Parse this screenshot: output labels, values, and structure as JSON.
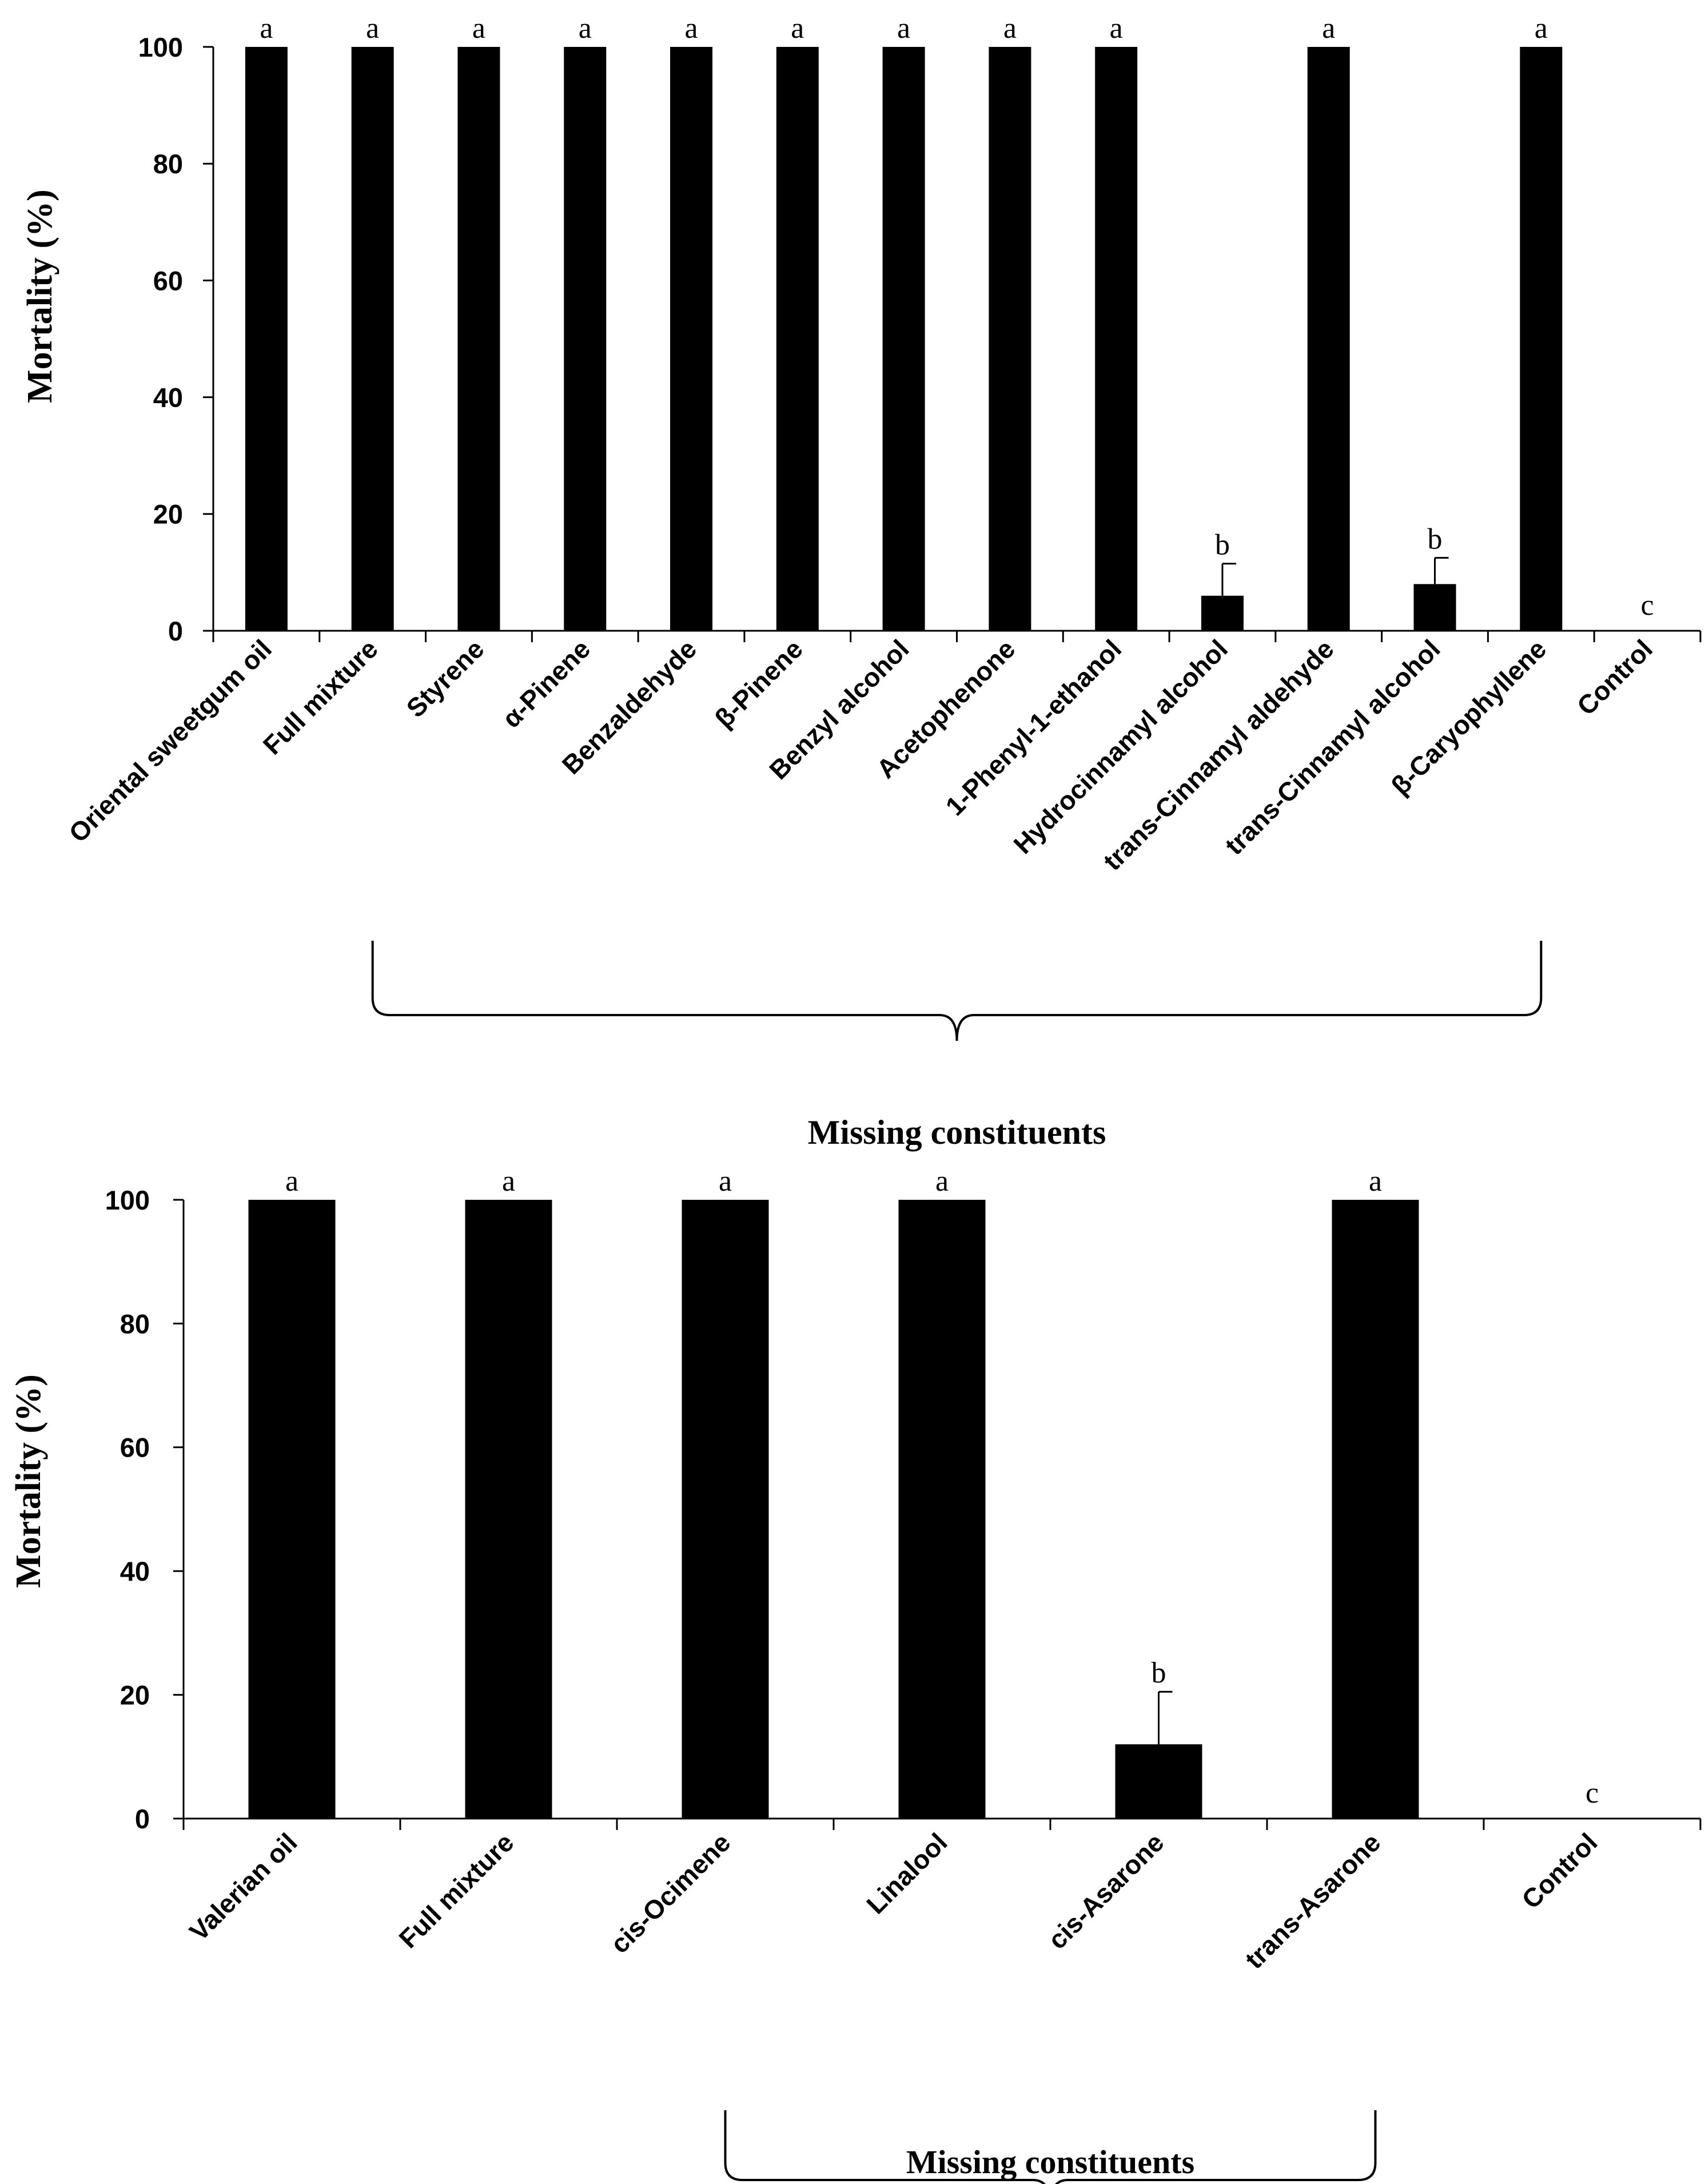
{
  "chart_data": [
    {
      "type": "bar",
      "title": "",
      "xlabel": "Missing constituents",
      "ylabel": "Mortality (%)",
      "ylim": [
        0,
        100
      ],
      "yticks": [
        0,
        20,
        40,
        60,
        80,
        100
      ],
      "categories": [
        "Oriental sweetgum oil",
        "Full mixture",
        "Styrene",
        "α-Pinene",
        "Benzaldehyde",
        "β-Pinene",
        "Benzyl alcohol",
        "Acetophenone",
        "1-Phenyl-1-ethanol",
        "Hydrocinnamyl alcohol",
        "trans-Cinnamyl aldehyde",
        "trans-Cinnamyl alcohol",
        "β-Caryophyllene",
        "Control"
      ],
      "values": [
        100,
        100,
        100,
        100,
        100,
        100,
        100,
        100,
        100,
        6,
        100,
        8,
        100,
        0
      ],
      "errors": [
        0,
        0,
        0,
        0,
        0,
        0,
        0,
        0,
        0,
        5.5,
        0,
        4.5,
        0,
        0
      ],
      "significance": [
        "a",
        "a",
        "a",
        "a",
        "a",
        "a",
        "a",
        "a",
        "a",
        "b",
        "a",
        "b",
        "a",
        "c"
      ],
      "bracket_from": 1,
      "bracket_to": 12
    },
    {
      "type": "bar",
      "title": "",
      "xlabel": "Missing constituents",
      "ylabel": "Mortality (%)",
      "ylim": [
        0,
        100
      ],
      "yticks": [
        0,
        20,
        40,
        60,
        80,
        100
      ],
      "categories": [
        "Valerian oil",
        "Full mixture",
        "cis-Ocimene",
        "Linalool",
        "cis-Asarone",
        "trans-Asarone",
        "Control"
      ],
      "values": [
        100,
        100,
        100,
        100,
        12,
        100,
        0
      ],
      "errors": [
        0,
        0,
        0,
        0,
        8.5,
        0,
        0
      ],
      "significance": [
        "a",
        "a",
        "a",
        "a",
        "b",
        "a",
        "c"
      ],
      "bracket_from": 2,
      "bracket_to": 5
    }
  ]
}
